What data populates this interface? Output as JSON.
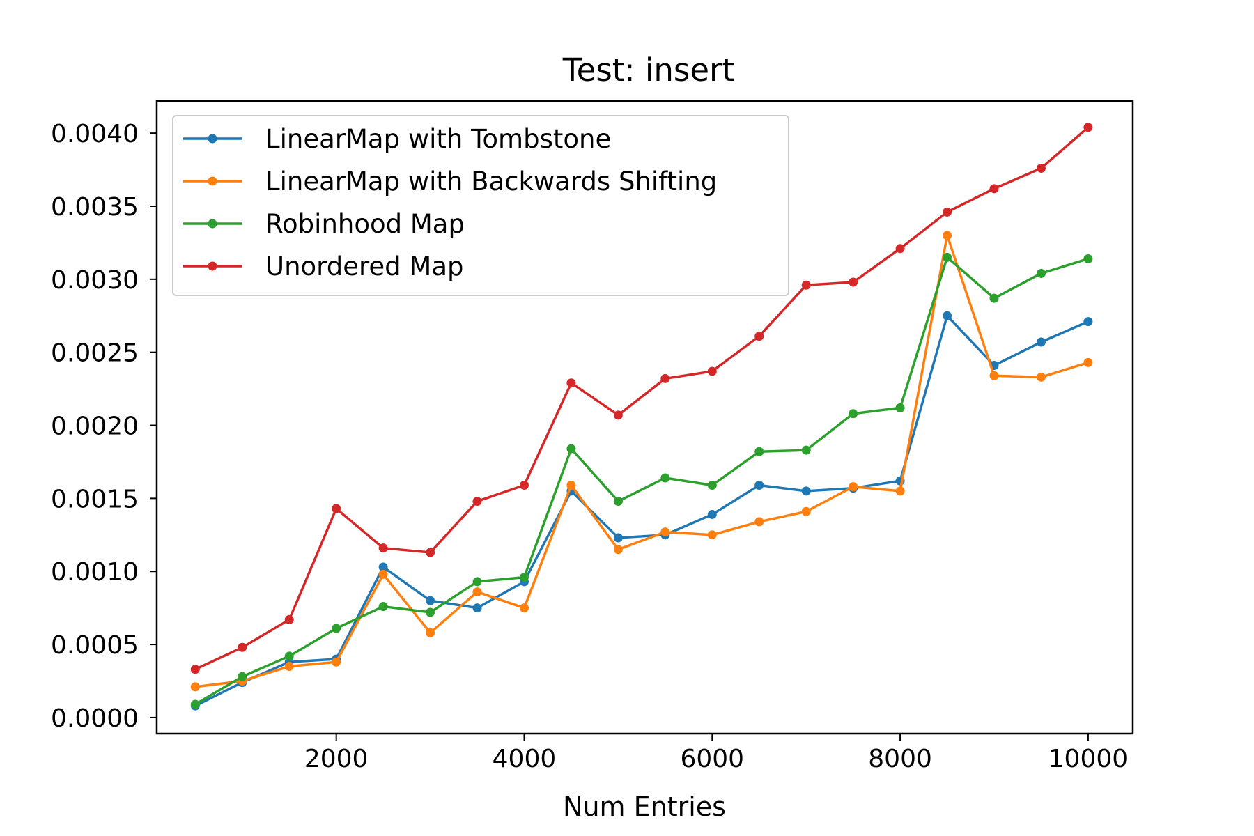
{
  "chart_data": {
    "type": "line",
    "title": "Test: insert",
    "xlabel": "Num Entries",
    "ylabel": "",
    "xlim": [
      90,
      10475
    ],
    "ylim": [
      -0.00011,
      0.00422
    ],
    "xticks": [
      2000,
      4000,
      6000,
      8000,
      10000
    ],
    "xtick_labels": [
      "2000",
      "4000",
      "6000",
      "8000",
      "10000"
    ],
    "yticks": [
      0.0,
      0.0005,
      0.001,
      0.0015,
      0.002,
      0.0025,
      0.003,
      0.0035,
      0.004
    ],
    "ytick_labels": [
      "0.0000",
      "0.0005",
      "0.0010",
      "0.0015",
      "0.0020",
      "0.0025",
      "0.0030",
      "0.0035",
      "0.0040"
    ],
    "grid": false,
    "legend_position": "top-left",
    "x": [
      500,
      1000,
      1500,
      2000,
      2500,
      3000,
      3500,
      4000,
      4500,
      5000,
      5500,
      6000,
      6500,
      7000,
      7500,
      8000,
      8500,
      9000,
      9500,
      10000
    ],
    "series": [
      {
        "name": "LinearMap with Tombstone",
        "color": "#1f77b4",
        "values": [
          8e-05,
          0.00024,
          0.00038,
          0.0004,
          0.00103,
          0.0008,
          0.00075,
          0.00093,
          0.00155,
          0.00123,
          0.00125,
          0.00139,
          0.00159,
          0.00155,
          0.00157,
          0.00162,
          0.00275,
          0.00241,
          0.00257,
          0.00271
        ]
      },
      {
        "name": "LinearMap with Backwards Shifting",
        "color": "#ff7f0e",
        "values": [
          0.00021,
          0.00025,
          0.00035,
          0.00038,
          0.00098,
          0.00058,
          0.00086,
          0.00075,
          0.00159,
          0.00115,
          0.00127,
          0.00125,
          0.00134,
          0.00141,
          0.00158,
          0.00155,
          0.0033,
          0.00234,
          0.00233,
          0.00243
        ]
      },
      {
        "name": "Robinhood Map",
        "color": "#2ca02c",
        "values": [
          9e-05,
          0.00028,
          0.00042,
          0.00061,
          0.00076,
          0.00072,
          0.00093,
          0.00096,
          0.00184,
          0.00148,
          0.00164,
          0.00159,
          0.00182,
          0.00183,
          0.00208,
          0.00212,
          0.00315,
          0.00287,
          0.00304,
          0.00314
        ]
      },
      {
        "name": "Unordered Map",
        "color": "#d62728",
        "values": [
          0.00033,
          0.00048,
          0.00067,
          0.00143,
          0.00116,
          0.00113,
          0.00148,
          0.00159,
          0.00229,
          0.00207,
          0.00232,
          0.00237,
          0.00261,
          0.00296,
          0.00298,
          0.00321,
          0.00346,
          0.00362,
          0.00376,
          0.00404
        ]
      }
    ]
  }
}
